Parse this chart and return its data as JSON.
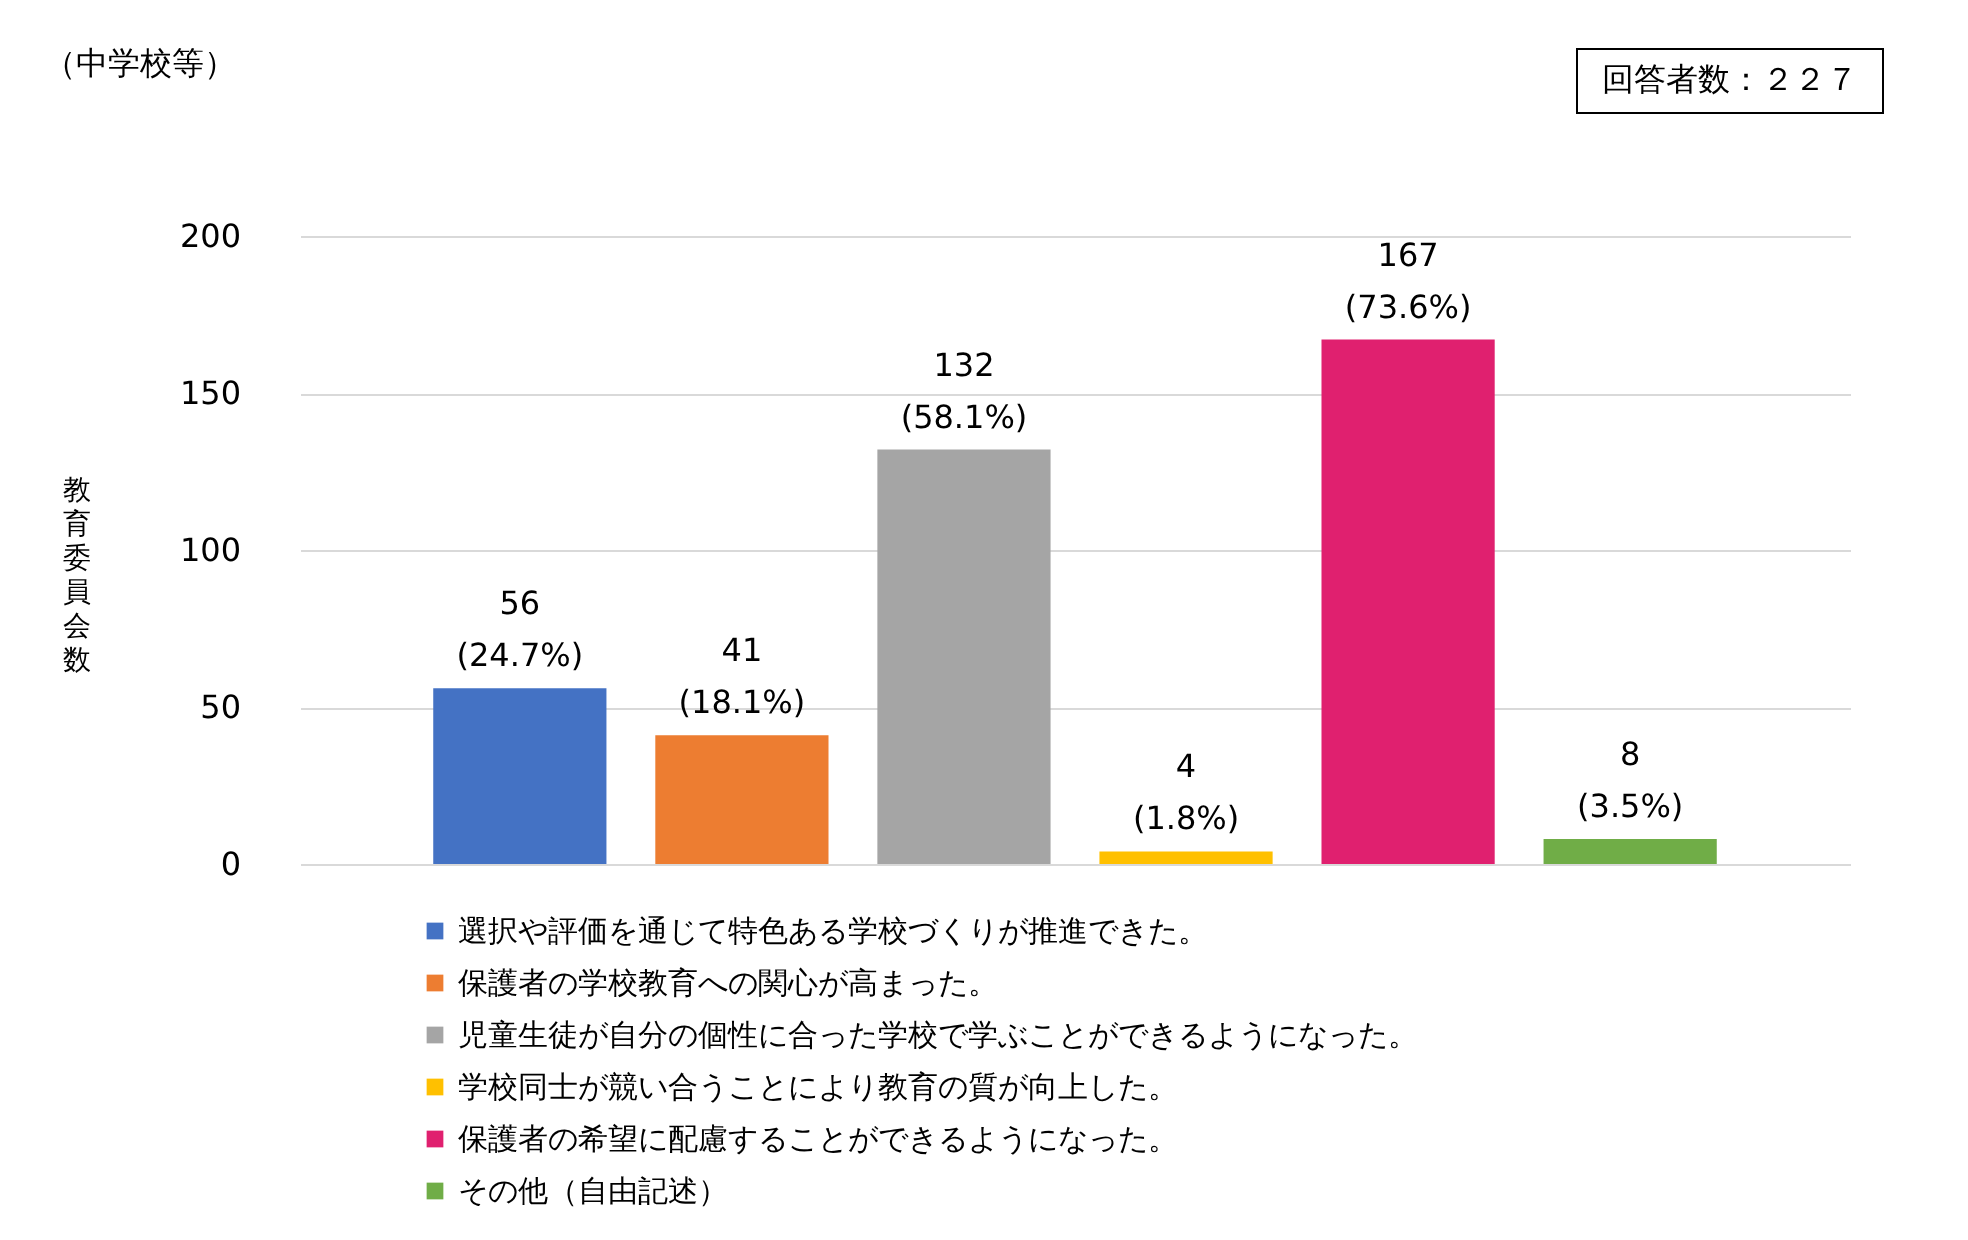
{
  "chart_data": {
    "type": "bar",
    "ylabel": "教育委員会数",
    "annotations": [
      "（中学校等）",
      "回答者数：２２７"
    ],
    "categories": [
      null,
      null,
      null,
      null,
      null,
      null
    ],
    "series": [
      {
        "name": "選択や評価を通じて特色ある学校づくりが推進できた。",
        "color": "#4472c4",
        "values": [
          56,
          null,
          null,
          null,
          null,
          null
        ],
        "value_labels": [
          "56 (24.7%)",
          null,
          null,
          null,
          null,
          null
        ]
      },
      {
        "name": "保護者の学校教育への関心が高まった。",
        "color": "#ed7d31",
        "values": [
          null,
          41,
          null,
          null,
          null,
          null
        ],
        "value_labels": [
          null,
          "41 (18.1%)",
          null,
          null,
          null,
          null
        ]
      },
      {
        "name": "児童生徒が自分の個性に合った学校で学ぶことができるようになった。",
        "color": "#a5a5a5",
        "values": [
          null,
          null,
          132,
          null,
          null,
          null
        ],
        "value_labels": [
          null,
          null,
          "132 (58.1%)",
          null,
          null,
          null
        ]
      },
      {
        "name": "学校同士が競い合うことにより教育の質が向上した。",
        "color": "#ffc000",
        "values": [
          null,
          null,
          null,
          4,
          null,
          null
        ],
        "value_labels": [
          null,
          null,
          null,
          "4 (1.8%)",
          null,
          null
        ]
      },
      {
        "name": "保護者の希望に配慮することができるようになった。",
        "color": "#e0206f",
        "values": [
          null,
          null,
          null,
          null,
          167,
          null
        ],
        "value_labels": [
          null,
          null,
          null,
          null,
          "167 (73.6%)",
          null
        ]
      },
      {
        "name": "その他（自由記述）",
        "color": "#70ad47",
        "values": [
          null,
          null,
          null,
          null,
          null,
          8
        ],
        "value_labels": [
          null,
          null,
          null,
          null,
          null,
          "8 (3.5%)"
        ]
      }
    ],
    "ylim": [
      0,
      200
    ],
    "yticks": [
      0,
      50,
      100,
      150,
      200
    ],
    "grid": "y",
    "legend": "bottom",
    "tick_labels": "y"
  }
}
